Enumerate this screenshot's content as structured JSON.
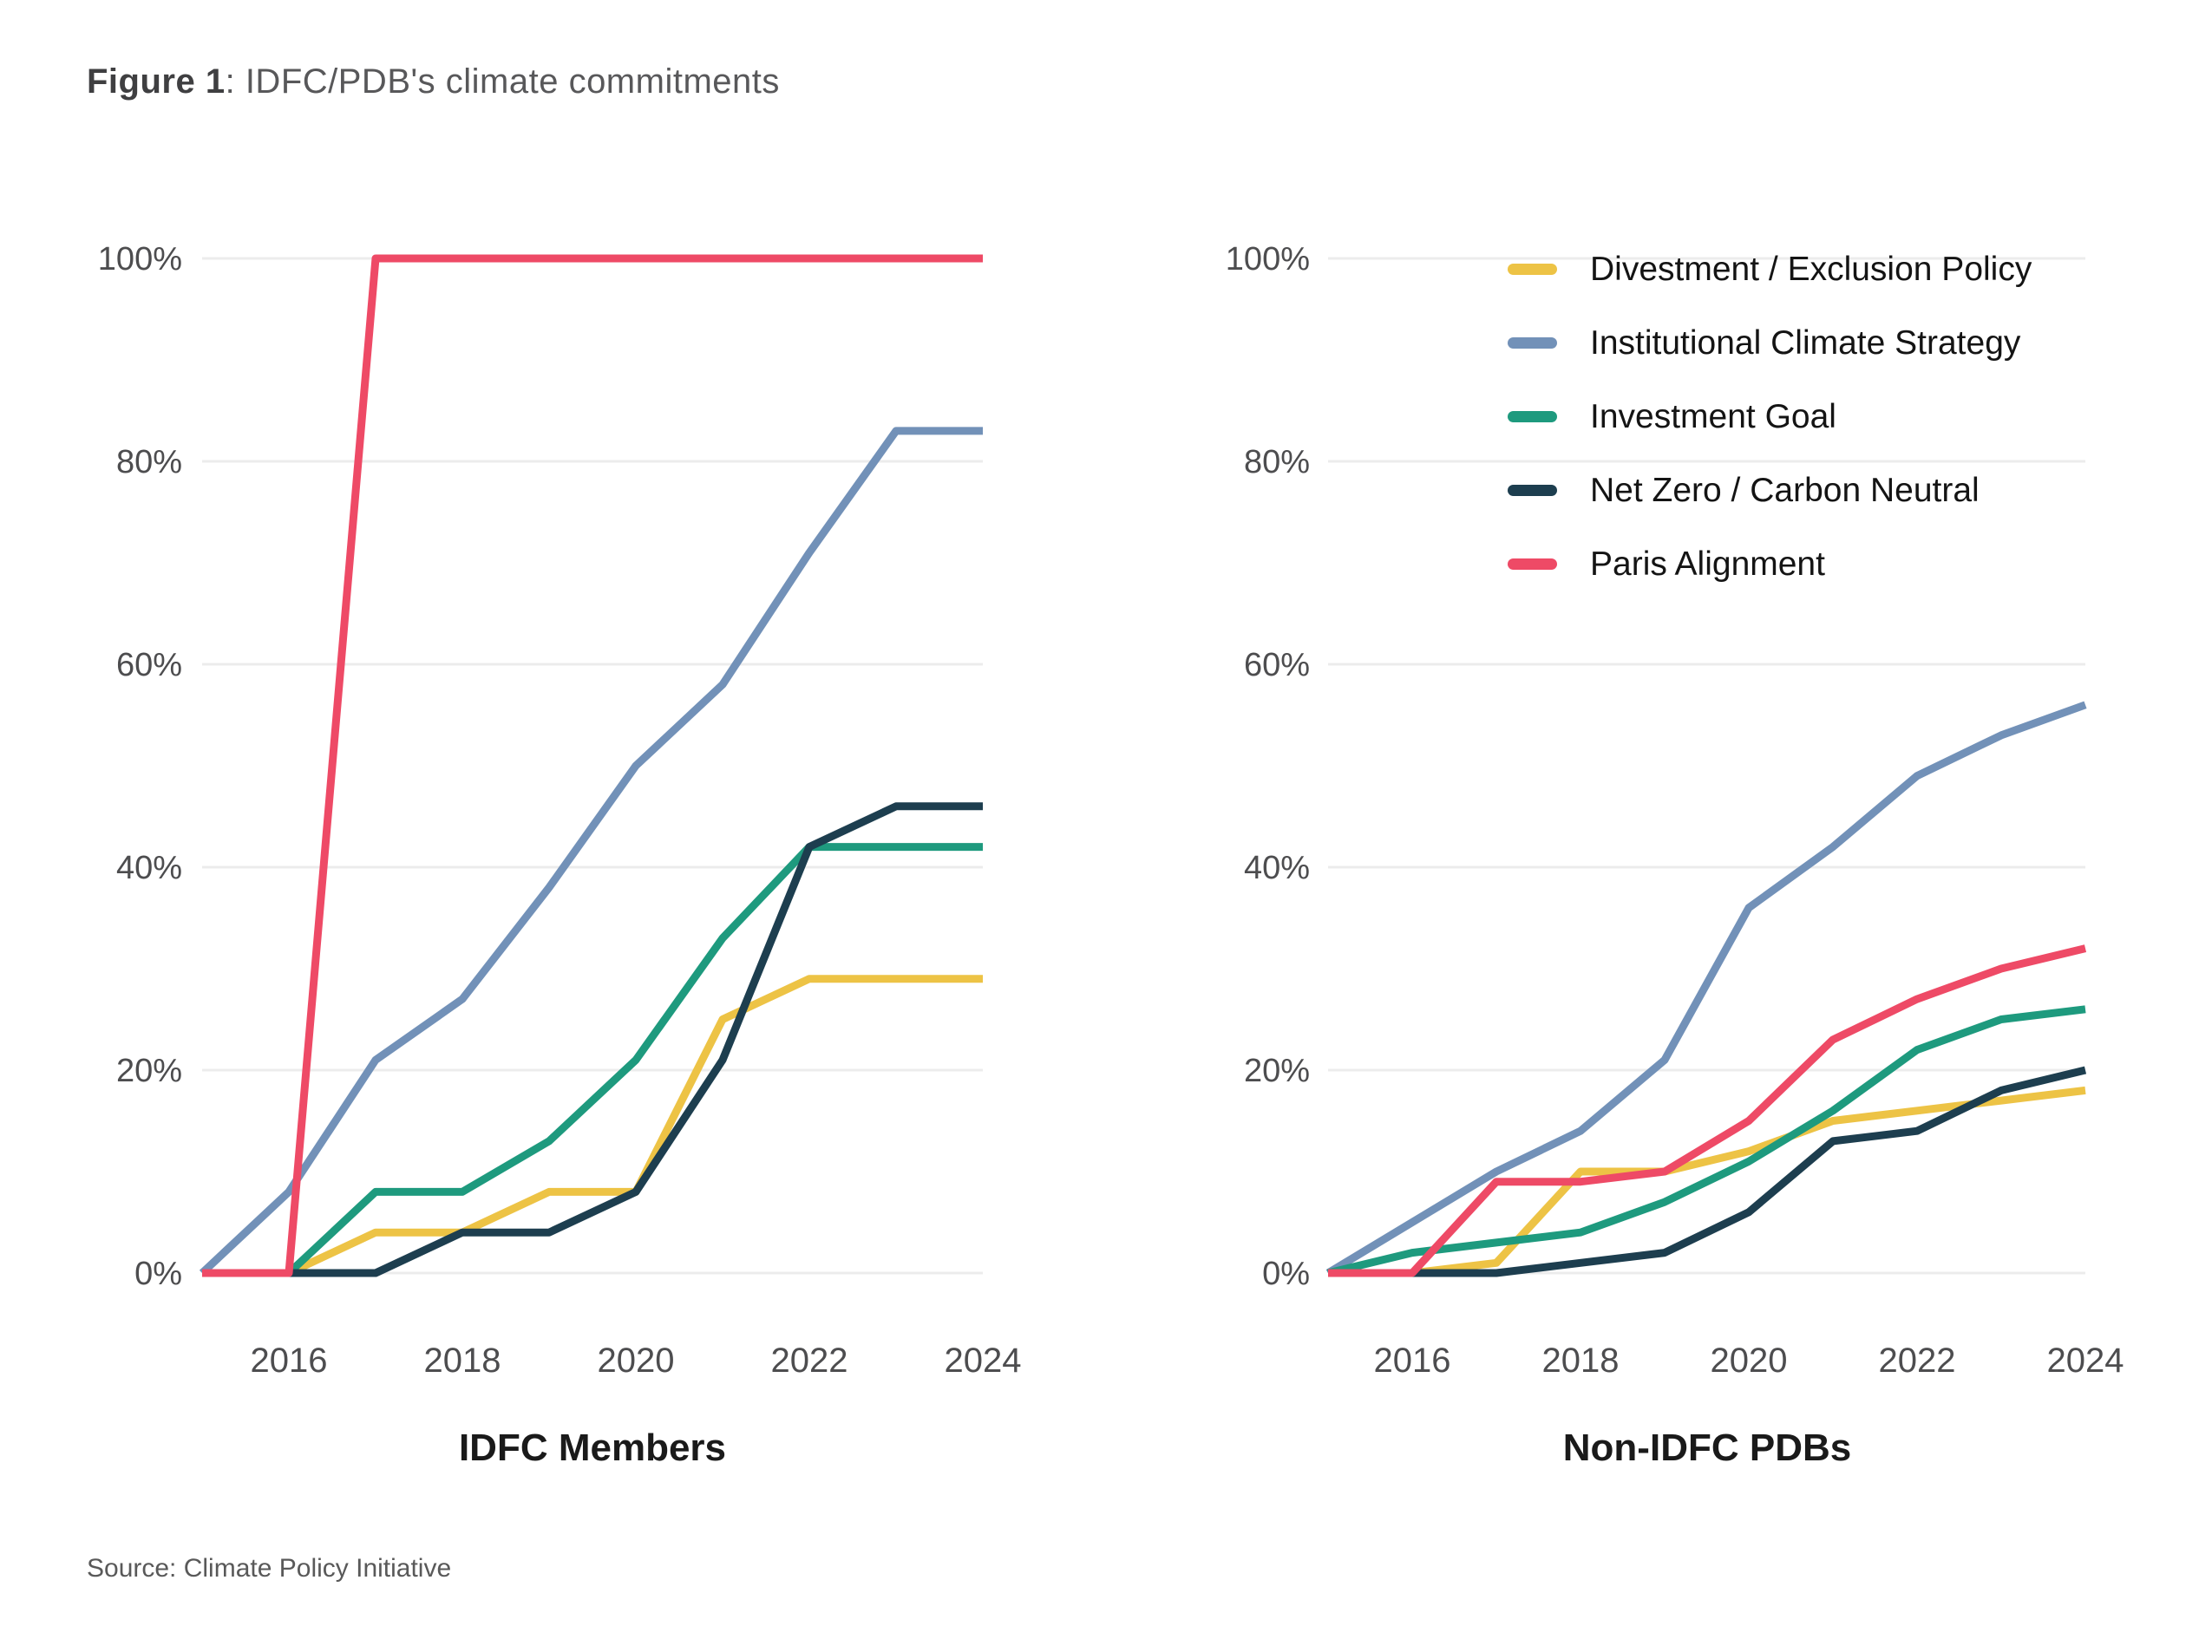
{
  "header": {
    "figure_label": "Figure 1",
    "title_rest": ": IDFC/PDB's climate commitments"
  },
  "footer": {
    "source": "Source: Climate Policy Initiative"
  },
  "chart_data": {
    "type": "line",
    "x": [
      2015,
      2016,
      2017,
      2018,
      2019,
      2020,
      2021,
      2022,
      2023,
      2024
    ],
    "x_tick_labels": [
      "2016",
      "2018",
      "2020",
      "2022",
      "2024"
    ],
    "x_tick_years": [
      2016,
      2018,
      2020,
      2022,
      2024
    ],
    "y_tick_labels": [
      "100%",
      "80%",
      "60%",
      "40%",
      "20%",
      "0%"
    ],
    "y_tick_values": [
      100,
      80,
      60,
      40,
      20,
      0
    ],
    "ylim": [
      0,
      100
    ],
    "grid": "horizontal",
    "legend_position": "top-right",
    "colors": {
      "divestment": "#edc345",
      "institutional": "#7291b8",
      "investment": "#1e9a7e",
      "netzero": "#1d3e4f",
      "paris": "#ee4a66",
      "gridline": "#ececec",
      "axis_text": "#4d4d4f"
    },
    "charts": [
      {
        "id": "idfc-members",
        "title": "IDFC Members",
        "series": [
          {
            "name": "Divestment / Exclusion Policy",
            "color": "#edc345",
            "values": [
              0,
              0,
              4,
              4,
              8,
              8,
              25,
              29,
              29,
              29
            ]
          },
          {
            "name": "Institutional Climate Strategy",
            "color": "#7291b8",
            "values": [
              0,
              8,
              21,
              27,
              38,
              50,
              58,
              71,
              83,
              83
            ]
          },
          {
            "name": "Investment Goal",
            "color": "#1e9a7e",
            "values": [
              0,
              0,
              8,
              8,
              13,
              21,
              33,
              42,
              42,
              42
            ]
          },
          {
            "name": "Net Zero / Carbon Neutral",
            "color": "#1d3e4f",
            "values": [
              0,
              0,
              0,
              4,
              4,
              8,
              21,
              42,
              46,
              46
            ]
          },
          {
            "name": "Paris Alignment",
            "color": "#ee4a66",
            "values": [
              0,
              0,
              100,
              100,
              100,
              100,
              100,
              100,
              100,
              100
            ]
          }
        ]
      },
      {
        "id": "non-idfc-pdbs",
        "title": "Non-IDFC PDBs",
        "series": [
          {
            "name": "Divestment / Exclusion Policy",
            "color": "#edc345",
            "values": [
              0,
              0,
              1,
              10,
              10,
              12,
              15,
              16,
              17,
              18
            ]
          },
          {
            "name": "Institutional Climate Strategy",
            "color": "#7291b8",
            "values": [
              0,
              5,
              10,
              14,
              21,
              36,
              42,
              49,
              53,
              56
            ]
          },
          {
            "name": "Investment Goal",
            "color": "#1e9a7e",
            "values": [
              0,
              2,
              3,
              4,
              7,
              11,
              16,
              22,
              25,
              26
            ]
          },
          {
            "name": "Net Zero / Carbon Neutral",
            "color": "#1d3e4f",
            "values": [
              0,
              0,
              0,
              1,
              2,
              6,
              13,
              14,
              18,
              20
            ]
          },
          {
            "name": "Paris Alignment",
            "color": "#ee4a66",
            "values": [
              0,
              0,
              9,
              9,
              10,
              15,
              23,
              27,
              30,
              32
            ]
          }
        ]
      }
    ]
  }
}
